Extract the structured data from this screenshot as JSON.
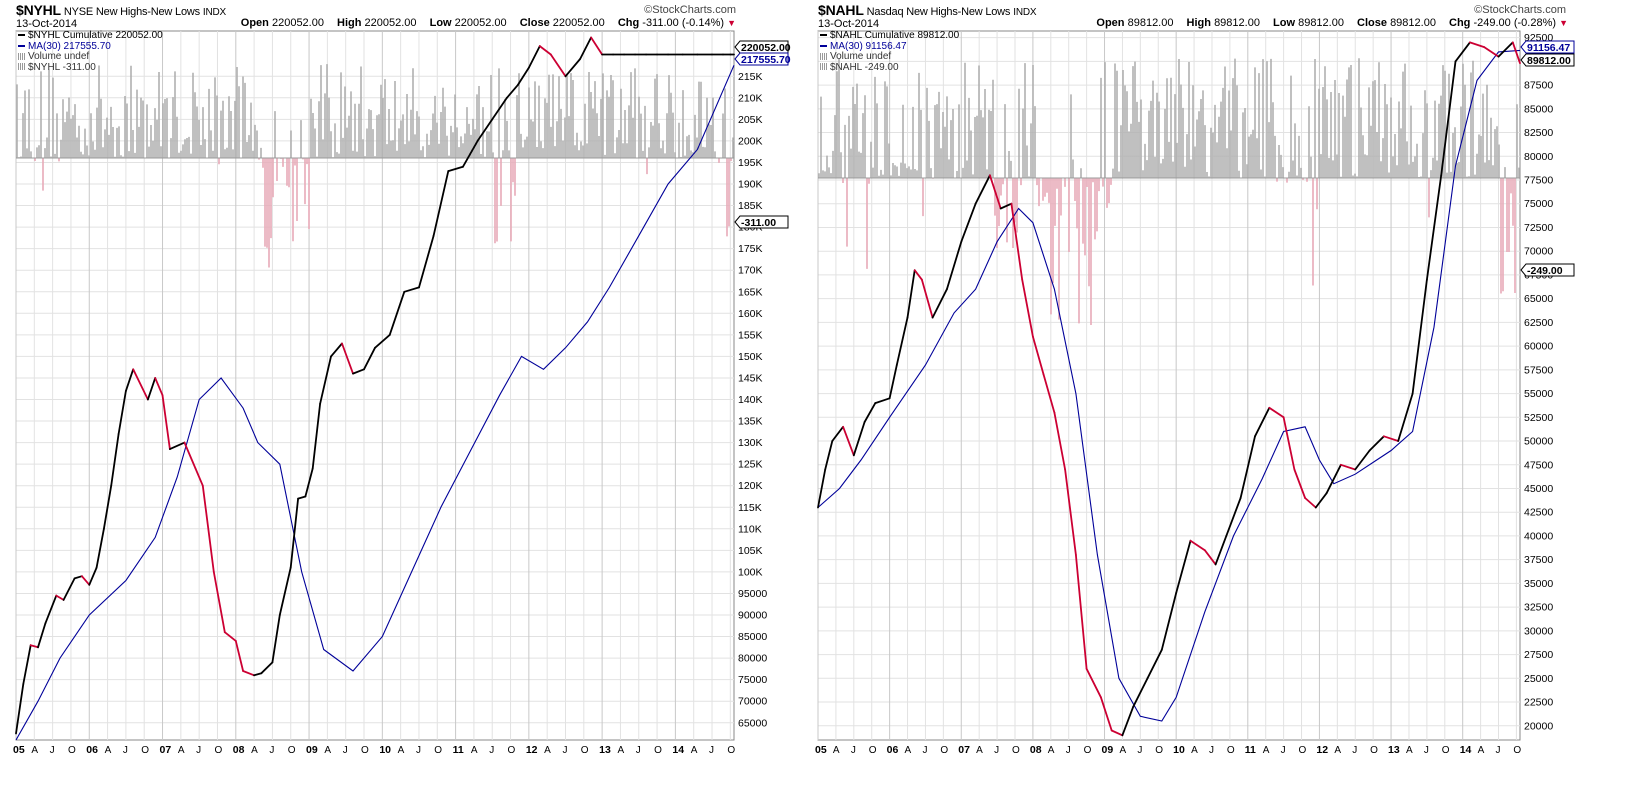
{
  "charts": [
    {
      "symbol": "$NYHL",
      "name": "NYSE New Highs-New Lows",
      "exchange": "INDX",
      "date": "13-Oct-2014",
      "brand": "©StockCharts.com",
      "ohlc": {
        "open_label": "Open",
        "open": "220052.00",
        "high_label": "High",
        "high": "220052.00",
        "low_label": "Low",
        "low": "220052.00",
        "close_label": "Close",
        "close": "220052.00",
        "chg_label": "Chg",
        "chg": "-311.00 (-0.14%)"
      },
      "legend": [
        "$NYHL Cumulative 220052.00",
        "MA(30) 217555.70",
        "Volume undef",
        "$NYHL -311.00"
      ],
      "price_tag": "220052.00",
      "ma_tag": "217555.70",
      "vol_tag": "-311.00"
    },
    {
      "symbol": "$NAHL",
      "name": "Nasdaq New Highs-New Lows",
      "exchange": "INDX",
      "date": "13-Oct-2014",
      "brand": "©StockCharts.com",
      "ohlc": {
        "open_label": "Open",
        "open": "89812.00",
        "high_label": "High",
        "high": "89812.00",
        "low_label": "Low",
        "low": "89812.00",
        "close_label": "Close",
        "close": "89812.00",
        "chg_label": "Chg",
        "chg": "-249.00 (-0.28%)"
      },
      "legend": [
        "$NAHL Cumulative 89812.00",
        "MA(30) 91156.47",
        "Volume undef",
        "$NAHL -249.00"
      ],
      "price_tag": "89812.00",
      "ma_tag": "91156.47",
      "vol_tag": "-249.00"
    }
  ],
  "colors": {
    "up": "#000000",
    "down": "#cc0033",
    "ma": "#000099",
    "vol_pos": "#b0b0b0",
    "vol_neg": "#e8aab8",
    "grid": "#e2e2e2"
  },
  "chart_data": [
    {
      "type": "line",
      "title": "$NYHL NYSE New Highs-New Lows INDX",
      "x_start": 2005.0,
      "x_end": 2014.8,
      "ylim": [
        61000,
        225500
      ],
      "y_ticks": [
        65000,
        70000,
        75000,
        80000,
        85000,
        90000,
        95000,
        100000,
        105000,
        110000,
        115000,
        120000,
        125000,
        130000,
        135000,
        140000,
        145000,
        150000,
        155000,
        160000,
        165000,
        170000,
        175000,
        180000,
        185000,
        190000,
        195000,
        200000,
        205000,
        210000,
        215000
      ],
      "y_tick_labels": [
        "65000",
        "70000",
        "75000",
        "80000",
        "85000",
        "90000",
        "95000",
        "100K",
        "105K",
        "110K",
        "115K",
        "120K",
        "125K",
        "130K",
        "135K",
        "140K",
        "145K",
        "150K",
        "155K",
        "160K",
        "165K",
        "170K",
        "175K",
        "180K",
        "185K",
        "190K",
        "195K",
        "200K",
        "205K",
        "210K",
        "215K"
      ],
      "x_tick_labels": [
        "05",
        "A",
        "J",
        "O",
        "06",
        "A",
        "J",
        "O",
        "07",
        "A",
        "J",
        "O",
        "08",
        "A",
        "J",
        "O",
        "09",
        "A",
        "J",
        "O",
        "10",
        "A",
        "J",
        "O",
        "11",
        "A",
        "J",
        "O",
        "12",
        "A",
        "J",
        "O",
        "13",
        "A",
        "J",
        "O",
        "14",
        "A",
        "J",
        "O"
      ],
      "series": [
        {
          "name": "$NYHL Cumulative",
          "x": [
            2005.0,
            2005.1,
            2005.2,
            2005.3,
            2005.4,
            2005.55,
            2005.65,
            2005.8,
            2005.9,
            2006.0,
            2006.1,
            2006.2,
            2006.3,
            2006.4,
            2006.5,
            2006.6,
            2006.8,
            2006.9,
            2007.0,
            2007.1,
            2007.3,
            2007.45,
            2007.55,
            2007.7,
            2007.85,
            2008.0,
            2008.1,
            2008.25,
            2008.35,
            2008.5,
            2008.6,
            2008.75,
            2008.85,
            2008.95,
            2009.05,
            2009.15,
            2009.3,
            2009.45,
            2009.6,
            2009.75,
            2009.9,
            2010.1,
            2010.3,
            2010.5,
            2010.7,
            2010.9,
            2011.1,
            2011.3,
            2011.5,
            2011.7,
            2011.85,
            2012.0,
            2012.15,
            2012.3,
            2012.5,
            2012.7,
            2012.85,
            2013.0,
            2013.15,
            2013.3,
            2013.45,
            2013.6,
            2013.75,
            2013.9,
            2014.1,
            2014.3,
            2014.5,
            2014.65,
            2014.75,
            2014.8
          ],
          "y": [
            62500,
            74000,
            83000,
            82500,
            88000,
            94500,
            93500,
            98500,
            99000,
            97000,
            101000,
            110000,
            120000,
            132000,
            142000,
            147000,
            140000,
            145000,
            141000,
            128500,
            130000,
            124000,
            120000,
            100000,
            86000,
            84000,
            77000,
            76000,
            76500,
            79000,
            90000,
            101000,
            117000,
            117500,
            124000,
            139000,
            150000,
            153000,
            146000,
            147000,
            152000,
            155000,
            165000,
            166000,
            178000,
            193000,
            194000,
            200000,
            205000,
            210000,
            213000,
            217000,
            222000,
            220052,
            215000,
            219000,
            224000,
            220052,
            220052,
            220052,
            220052,
            220052,
            220052,
            220052,
            220052,
            220052,
            220052,
            220052,
            220052,
            220052
          ]
        },
        {
          "name": "MA(30)",
          "x": [
            2005.0,
            2005.3,
            2005.6,
            2006.0,
            2006.5,
            2006.9,
            2007.2,
            2007.5,
            2007.8,
            2008.1,
            2008.3,
            2008.6,
            2008.9,
            2009.2,
            2009.6,
            2010.0,
            2010.4,
            2010.8,
            2011.2,
            2011.6,
            2011.9,
            2012.2,
            2012.5,
            2012.8,
            2013.1,
            2013.5,
            2013.9,
            2014.3,
            2014.8
          ],
          "y": [
            61000,
            70000,
            80000,
            90000,
            98000,
            108000,
            122000,
            140000,
            145000,
            138000,
            130000,
            125000,
            100000,
            82000,
            77000,
            85000,
            100000,
            115000,
            128000,
            141000,
            150000,
            147000,
            152000,
            158000,
            166000,
            178000,
            190000,
            198000,
            217555.7
          ]
        }
      ]
    },
    {
      "type": "line",
      "title": "$NAHL Nasdaq New Highs-New Lows INDX",
      "x_start": 2005.0,
      "x_end": 2014.8,
      "ylim": [
        18500,
        93200
      ],
      "y_ticks": [
        20000,
        22500,
        25000,
        27500,
        30000,
        32500,
        35000,
        37500,
        40000,
        42500,
        45000,
        47500,
        50000,
        52500,
        55000,
        57500,
        60000,
        62500,
        65000,
        67500,
        70000,
        72500,
        75000,
        77500,
        80000,
        82500,
        85000,
        87500,
        90000,
        92500
      ],
      "y_tick_labels": [
        "20000",
        "22500",
        "25000",
        "27500",
        "30000",
        "32500",
        "35000",
        "37500",
        "40000",
        "42500",
        "45000",
        "47500",
        "50000",
        "52500",
        "55000",
        "57500",
        "60000",
        "62500",
        "65000",
        "67500",
        "70000",
        "72500",
        "75000",
        "77500",
        "80000",
        "82500",
        "85000",
        "87500",
        "90000",
        "92500"
      ],
      "x_tick_labels": [
        "05",
        "A",
        "J",
        "O",
        "06",
        "A",
        "J",
        "O",
        "07",
        "A",
        "J",
        "O",
        "08",
        "A",
        "J",
        "O",
        "09",
        "A",
        "J",
        "O",
        "10",
        "A",
        "J",
        "O",
        "11",
        "A",
        "J",
        "O",
        "12",
        "A",
        "J",
        "O",
        "13",
        "A",
        "J",
        "O",
        "14",
        "A",
        "J",
        "O"
      ],
      "series": [
        {
          "name": "$NAHL Cumulative",
          "x": [
            2005.0,
            2005.1,
            2005.2,
            2005.35,
            2005.5,
            2005.65,
            2005.8,
            2006.0,
            2006.1,
            2006.25,
            2006.35,
            2006.45,
            2006.6,
            2006.8,
            2007.0,
            2007.2,
            2007.4,
            2007.55,
            2007.7,
            2007.85,
            2008.0,
            2008.15,
            2008.3,
            2008.45,
            2008.6,
            2008.75,
            2008.95,
            2009.1,
            2009.25,
            2009.4,
            2009.6,
            2009.8,
            2010.0,
            2010.2,
            2010.4,
            2010.55,
            2010.7,
            2010.9,
            2011.1,
            2011.3,
            2011.5,
            2011.65,
            2011.8,
            2011.95,
            2012.1,
            2012.3,
            2012.5,
            2012.7,
            2012.9,
            2013.1,
            2013.3,
            2013.5,
            2013.7,
            2013.9,
            2014.1,
            2014.3,
            2014.5,
            2014.7,
            2014.8
          ],
          "y": [
            43000,
            47000,
            50000,
            51500,
            48500,
            52000,
            54000,
            54500,
            58000,
            63000,
            68000,
            67000,
            63000,
            66000,
            71000,
            75000,
            78000,
            74500,
            75000,
            67000,
            61000,
            57000,
            53000,
            47000,
            38000,
            26000,
            23000,
            19500,
            19000,
            22000,
            25000,
            28000,
            34000,
            39500,
            38500,
            37000,
            40000,
            44000,
            50500,
            53500,
            52500,
            47000,
            44000,
            43000,
            44500,
            47500,
            47000,
            49000,
            50500,
            50000,
            55000,
            67000,
            78000,
            90000,
            92000,
            91500,
            90500,
            92000,
            89812
          ]
        },
        {
          "name": "MA(30)",
          "x": [
            2005.0,
            2005.3,
            2005.6,
            2006.0,
            2006.5,
            2006.9,
            2007.2,
            2007.5,
            2007.8,
            2008.0,
            2008.3,
            2008.6,
            2008.9,
            2009.2,
            2009.5,
            2009.8,
            2010.0,
            2010.4,
            2010.8,
            2011.2,
            2011.5,
            2011.8,
            2012.0,
            2012.2,
            2012.5,
            2012.8,
            2013.0,
            2013.3,
            2013.6,
            2013.9,
            2014.2,
            2014.5,
            2014.8
          ],
          "y": [
            43000,
            45000,
            48000,
            52500,
            58000,
            63500,
            66000,
            71000,
            74500,
            73000,
            66000,
            55000,
            38000,
            25000,
            21000,
            20500,
            23000,
            32000,
            40000,
            46000,
            51000,
            51500,
            48000,
            45500,
            46500,
            48000,
            49000,
            51000,
            62000,
            79000,
            88000,
            91000,
            91156.47
          ]
        }
      ]
    }
  ]
}
